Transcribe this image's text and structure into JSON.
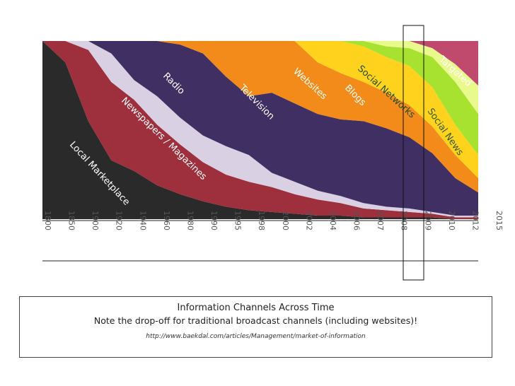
{
  "chart_data": {
    "type": "area",
    "stacked": true,
    "normalized": true,
    "x_type": "categorical",
    "categories": [
      "1800",
      "1850",
      "1900",
      "1920",
      "1940",
      "1960",
      "1980",
      "1990",
      "1995",
      "1998",
      "2000",
      "2002",
      "2004",
      "2006",
      "2007",
      "2008",
      "2009",
      "2010",
      "2012",
      "2015"
    ],
    "series": [
      {
        "name": "Local Marketplace",
        "color": "#2a2a2a",
        "values": [
          100,
          88,
          55,
          33,
          27,
          19,
          14,
          10,
          7,
          5,
          4,
          3,
          2,
          2,
          1,
          1,
          1,
          1,
          0,
          0
        ]
      },
      {
        "name": "Newspapers / Magazines",
        "color": "#9e2f3c",
        "values": [
          0,
          12,
          40,
          44,
          40,
          34,
          28,
          22,
          18,
          16,
          14,
          11,
          9,
          7,
          5,
          4,
          3,
          2,
          1,
          1
        ]
      },
      {
        "name": "Radio",
        "color": "#d9d0e4",
        "values": [
          0,
          0,
          5,
          16,
          11,
          16,
          15,
          15,
          16,
          15,
          8,
          7,
          5,
          4,
          3,
          2,
          2,
          1,
          1,
          1
        ]
      },
      {
        "name": "Television",
        "color": "#3f2f63",
        "values": [
          0,
          0,
          0,
          7,
          22,
          31,
          41,
          46,
          39,
          33,
          45,
          44,
          43,
          43,
          46,
          44,
          40,
          33,
          21,
          13
        ]
      },
      {
        "name": "Websites",
        "color": "#f38b1a",
        "values": [
          0,
          0,
          0,
          0,
          0,
          0,
          2,
          7,
          20,
          31,
          29,
          35,
          29,
          26,
          22,
          20,
          18,
          15,
          13,
          8
        ]
      },
      {
        "name": "Blogs",
        "color": "#ffd21e",
        "values": [
          0,
          0,
          0,
          0,
          0,
          0,
          0,
          0,
          0,
          0,
          0,
          0,
          12,
          18,
          20,
          20,
          22,
          22,
          17,
          13
        ]
      },
      {
        "name": "Social Networks",
        "color": "#a6e22f",
        "values": [
          0,
          0,
          0,
          0,
          0,
          0,
          0,
          0,
          0,
          0,
          0,
          0,
          0,
          0,
          3,
          6,
          10,
          17,
          24,
          23
        ]
      },
      {
        "name": "Social News",
        "color": "#eaf98c",
        "values": [
          0,
          0,
          0,
          0,
          0,
          0,
          0,
          0,
          0,
          0,
          0,
          0,
          0,
          0,
          0,
          3,
          4,
          5,
          10,
          16
        ]
      },
      {
        "name": "Targeted",
        "color": "#bf4a6e",
        "values": [
          0,
          0,
          0,
          0,
          0,
          0,
          0,
          0,
          0,
          0,
          0,
          0,
          0,
          0,
          0,
          0,
          0,
          4,
          13,
          25
        ]
      }
    ],
    "highlight_category": "2010",
    "title": "Information Channels Across Time"
  },
  "caption": {
    "title": "Information Channels Across Time",
    "note": "Note the drop-off for traditional broadcast channels (including websites)!",
    "url": "http://www.baekdal.com/articles/Management/market-of-information"
  }
}
